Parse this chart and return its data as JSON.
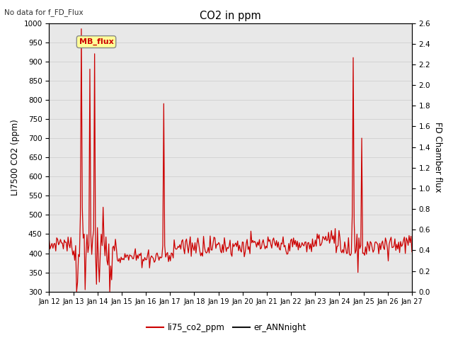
{
  "title": "CO2 in ppm",
  "subtitle": "No data for f_FD_Flux",
  "ylabel_left": "LI7500 CO2 (ppm)",
  "ylabel_right": "FD Chamber flux",
  "ylim_left": [
    300,
    1000
  ],
  "ylim_right": [
    0.0,
    2.6
  ],
  "yticks_left": [
    300,
    350,
    400,
    450,
    500,
    550,
    600,
    650,
    700,
    750,
    800,
    850,
    900,
    950,
    1000
  ],
  "yticks_right": [
    0.0,
    0.2,
    0.4,
    0.6,
    0.8,
    1.0,
    1.2,
    1.4,
    1.6,
    1.8,
    2.0,
    2.2,
    2.4,
    2.6
  ],
  "xtick_labels": [
    "Jan 12",
    "Jan 13",
    "Jan 14",
    "Jan 15",
    "Jan 16",
    "Jan 17",
    "Jan 18",
    "Jan 19",
    "Jan 20",
    "Jan 21",
    "Jan 22",
    "Jan 23",
    "Jan 24",
    "Jan 25",
    "Jan 26",
    "Jan 27"
  ],
  "color_red": "#cc0000",
  "color_black": "#111111",
  "color_legend_bg": "#ffff99",
  "legend_label_mb": "MB_flux",
  "legend_label_red": "li75_co2_ppm",
  "legend_label_black": "er_ANNnight",
  "bg_color": "#ffffff",
  "grid_color": "#d0d0d0",
  "plot_bg": "#e8e8e8"
}
